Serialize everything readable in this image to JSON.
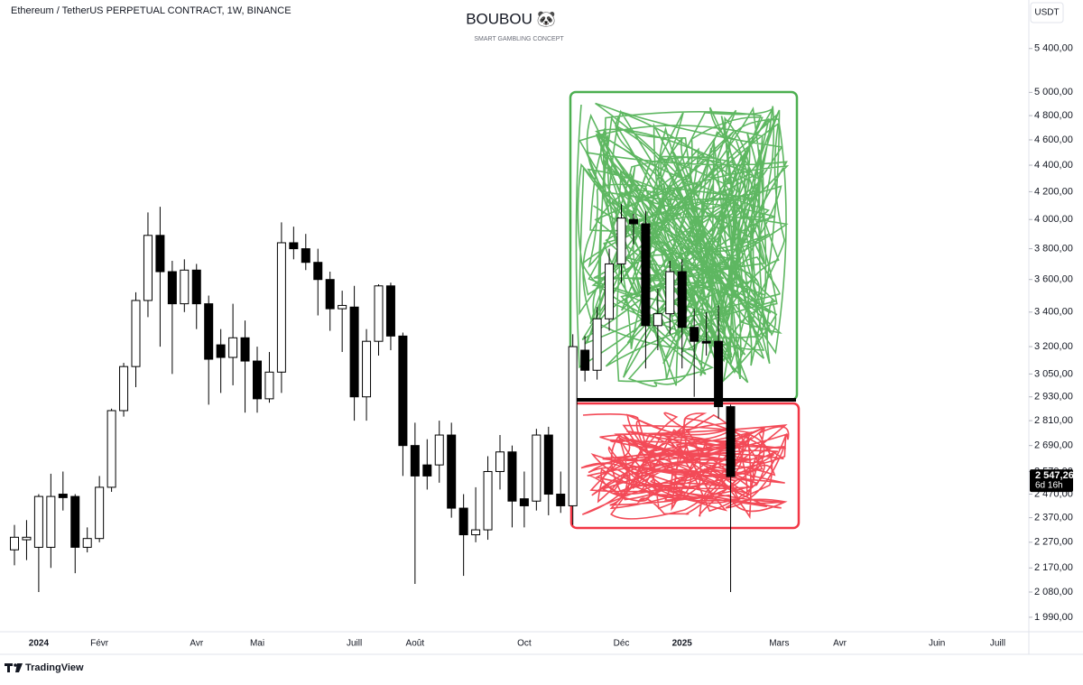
{
  "chart_data": {
    "type": "candlestick",
    "title": "Ethereum / TetherUS PERPETUAL CONTRACT, 1W, BINANCE",
    "watermark": "BOUBOU 🐼",
    "watermark_subtitle": "SMART GAMBLING CONCEPT",
    "currency": "USDT",
    "brand": "TradingView",
    "log_scale": true,
    "up_color": "#ffffff",
    "down_color": "#000000",
    "wick_color": "#000000",
    "ylim": [
      1940,
      5880
    ],
    "yticks": [
      {
        "value": 5400,
        "label": "5 400,00"
      },
      {
        "value": 5000,
        "label": "5 000,00"
      },
      {
        "value": 4800,
        "label": "4 800,00"
      },
      {
        "value": 4600,
        "label": "4 600,00"
      },
      {
        "value": 4400,
        "label": "4 400,00"
      },
      {
        "value": 4200,
        "label": "4 200,00"
      },
      {
        "value": 4000,
        "label": "4 000,00"
      },
      {
        "value": 3800,
        "label": "3 800,00"
      },
      {
        "value": 3600,
        "label": "3 600,00"
      },
      {
        "value": 3400,
        "label": "3 400,00"
      },
      {
        "value": 3200,
        "label": "3 200,00"
      },
      {
        "value": 3050,
        "label": "3 050,00"
      },
      {
        "value": 2930,
        "label": "2 930,00"
      },
      {
        "value": 2810,
        "label": "2 810,00"
      },
      {
        "value": 2690,
        "label": "2 690,00"
      },
      {
        "value": 2570,
        "label": "2 570,00"
      },
      {
        "value": 2470,
        "label": "2 470,00"
      },
      {
        "value": 2370,
        "label": "2 370,00"
      },
      {
        "value": 2270,
        "label": "2 270,00"
      },
      {
        "value": 2170,
        "label": "2 170,00"
      },
      {
        "value": 2080,
        "label": "2 080,00"
      },
      {
        "value": 1990,
        "label": "1 990,00"
      }
    ],
    "last_price": {
      "value": 2547.26,
      "label": "2 547,26"
    },
    "countdown": "6d 16h",
    "categories": [
      null,
      null,
      "2024",
      null,
      null,
      null,
      null,
      "Févr",
      null,
      null,
      null,
      null,
      null,
      null,
      null,
      "Avr",
      null,
      null,
      null,
      null,
      "Mai",
      null,
      null,
      null,
      null,
      null,
      null,
      null,
      "Juill",
      null,
      null,
      null,
      null,
      "Août",
      null,
      null,
      null,
      null,
      null,
      null,
      null,
      null,
      "Oct",
      null,
      null,
      null,
      null,
      null,
      null,
      null,
      "Déc",
      null,
      null,
      null,
      null,
      "2025",
      null,
      null,
      null,
      null,
      null,
      null,
      null,
      "Mars",
      null,
      null,
      null,
      null,
      "Avr",
      null,
      null,
      null,
      null,
      null,
      null,
      null,
      "Juin",
      null,
      null,
      null,
      null,
      "Juill",
      null,
      null
    ],
    "open": [
      2240,
      2280,
      2250,
      2250,
      2470,
      2460,
      2250,
      2285,
      2500,
      2860,
      3090,
      3470,
      3890,
      3650,
      3450,
      3660,
      3450,
      3210,
      3140,
      3250,
      3120,
      2920,
      3060,
      3840,
      3800,
      3710,
      3600,
      3420,
      3430,
      2930,
      3230,
      3560,
      3260,
      2690,
      2600,
      2600,
      2740,
      2410,
      2300,
      2320,
      2570,
      2660,
      2450,
      2440,
      2740,
      2470,
      2420,
      3180,
      3070,
      3360,
      3700,
      4000,
      3970,
      3320,
      3390,
      3650,
      3310,
      3230,
      3230,
      2880,
      null,
      null,
      null,
      null,
      null,
      null,
      null,
      null,
      null,
      null,
      null,
      null,
      null,
      null,
      null,
      null,
      null,
      null,
      null,
      null,
      null,
      null,
      null,
      null
    ],
    "high": [
      2340,
      2360,
      2470,
      2560,
      2570,
      2470,
      2330,
      2550,
      2870,
      3110,
      3520,
      4050,
      4090,
      3720,
      3730,
      3700,
      3500,
      3300,
      3450,
      3350,
      3200,
      3170,
      3980,
      3950,
      3900,
      3800,
      3650,
      3530,
      3560,
      3300,
      3570,
      3580,
      3280,
      2800,
      2720,
      2810,
      2800,
      2470,
      2500,
      2640,
      2740,
      2690,
      2570,
      2770,
      2780,
      2570,
      3270,
      3260,
      3430,
      3800,
      4110,
      4040,
      4060,
      3540,
      3720,
      3730,
      3420,
      3400,
      3440,
      2890,
      null,
      null,
      null,
      null,
      null,
      null,
      null,
      null,
      null,
      null,
      null,
      null,
      null,
      null,
      null,
      null,
      null,
      null,
      null,
      null,
      null,
      null,
      null,
      null
    ],
    "low": [
      2180,
      2200,
      2080,
      2170,
      2400,
      2150,
      2230,
      2270,
      2480,
      2830,
      2980,
      3370,
      3200,
      3050,
      3400,
      3300,
      2890,
      2950,
      2990,
      2850,
      2850,
      2900,
      2950,
      3730,
      3660,
      3380,
      3290,
      3170,
      2810,
      2810,
      3150,
      3180,
      2550,
      2110,
      2490,
      2520,
      2370,
      2140,
      2270,
      2280,
      2490,
      2330,
      2330,
      2400,
      2380,
      2390,
      2340,
      3010,
      3020,
      3290,
      3580,
      3830,
      3080,
      3180,
      3270,
      3080,
      2930,
      3150,
      2820,
      2080,
      null,
      null,
      null,
      null,
      null,
      null,
      null,
      null,
      null,
      null,
      null,
      null,
      null,
      null,
      null,
      null,
      null,
      null,
      null,
      null,
      null,
      null,
      null,
      null
    ],
    "close": [
      2290,
      2290,
      2460,
      2460,
      2455,
      2250,
      2285,
      2500,
      2860,
      3090,
      3470,
      3890,
      3650,
      3450,
      3660,
      3450,
      3130,
      3140,
      3250,
      3120,
      2920,
      3060,
      3840,
      3800,
      3710,
      3600,
      3420,
      3440,
      2930,
      3230,
      3560,
      3260,
      2690,
      2550,
      2550,
      2740,
      2410,
      2300,
      2320,
      2570,
      2660,
      2440,
      2420,
      2740,
      2470,
      2420,
      3200,
      3070,
      3360,
      3700,
      4010,
      3970,
      3320,
      3390,
      3650,
      3310,
      3230,
      3220,
      2880,
      2547.26,
      null,
      null,
      null,
      null,
      null,
      null,
      null,
      null,
      null,
      null,
      null,
      null,
      null,
      null,
      null,
      null,
      null,
      null,
      null,
      null,
      null,
      null,
      null,
      null
    ]
  }
}
